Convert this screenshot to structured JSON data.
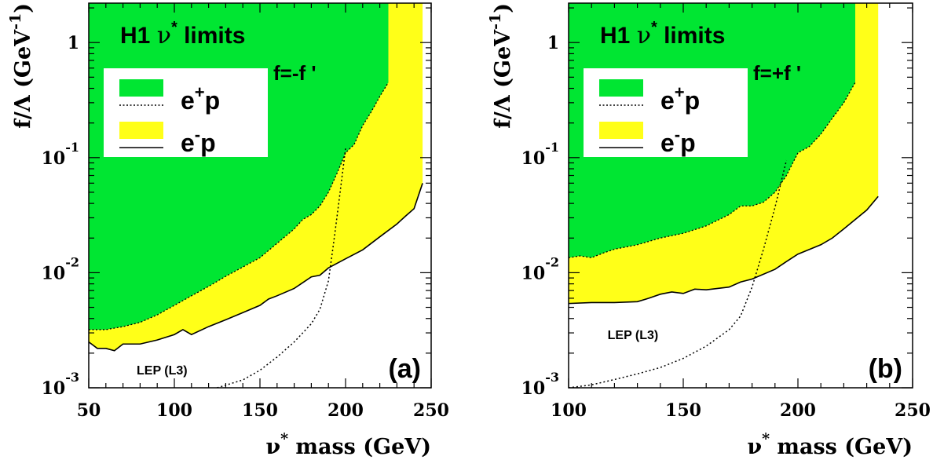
{
  "chart_data": [
    {
      "type": "area",
      "panel_tag": "(a)",
      "title": {
        "main": "H1 ",
        "greek": "ν",
        "sup": "*",
        "rest": " limits"
      },
      "coupling_label": "f=-f '",
      "xlabel": {
        "greek": "ν",
        "sup": "*",
        "rest": " mass (GeV)"
      },
      "ylabel": {
        "main": "f/Λ (GeV",
        "sup": "-1",
        "end": ")"
      },
      "xlim": [
        50,
        250
      ],
      "ylim": [
        0.001,
        2.2
      ],
      "y_scale": "log",
      "x_ticks": [
        50,
        100,
        150,
        200,
        250
      ],
      "x_tick_labels": [
        "50",
        "100",
        "150",
        "200",
        "250"
      ],
      "y_ticks": [
        {
          "value": 1,
          "base": "1",
          "exp": ""
        },
        {
          "value": 0.1,
          "base": "10",
          "exp": "-1"
        },
        {
          "value": 0.01,
          "base": "10",
          "exp": "-2"
        },
        {
          "value": 0.001,
          "base": "10",
          "exp": "-3"
        }
      ],
      "legend": {
        "placement": "upper-left",
        "entries": [
          {
            "swatch": "#00e632",
            "line": "dotted",
            "text": "e",
            "sup": "+",
            "tail": "p"
          },
          {
            "swatch": "#ffff18",
            "line": "solid",
            "text": "e",
            "sup": "-",
            "tail": "p"
          }
        ]
      },
      "series": [
        {
          "name": "e+p",
          "color": "#00e632",
          "line": "dotted",
          "x": [
            50,
            55,
            60,
            65,
            70,
            80,
            90,
            100,
            110,
            120,
            130,
            140,
            150,
            160,
            170,
            175,
            180,
            185,
            190,
            195,
            200,
            205,
            210,
            215,
            220,
            225
          ],
          "y": [
            0.0032,
            0.0032,
            0.0032,
            0.0033,
            0.0034,
            0.0037,
            0.0043,
            0.0052,
            0.0063,
            0.0076,
            0.0093,
            0.0112,
            0.0135,
            0.018,
            0.024,
            0.029,
            0.032,
            0.038,
            0.05,
            0.073,
            0.11,
            0.13,
            0.19,
            0.25,
            0.34,
            0.45
          ]
        },
        {
          "name": "e-p",
          "color": "#ffff18",
          "line": "solid",
          "x": [
            50,
            55,
            60,
            65,
            70,
            80,
            90,
            100,
            105,
            110,
            120,
            130,
            140,
            150,
            155,
            160,
            170,
            180,
            185,
            190,
            200,
            210,
            220,
            230,
            235,
            240,
            245
          ],
          "y": [
            0.0025,
            0.0022,
            0.0022,
            0.0021,
            0.0024,
            0.0024,
            0.0026,
            0.0029,
            0.0032,
            0.0029,
            0.0034,
            0.0039,
            0.0045,
            0.0052,
            0.0059,
            0.0063,
            0.0073,
            0.0092,
            0.0095,
            0.011,
            0.0132,
            0.0158,
            0.0205,
            0.0265,
            0.031,
            0.036,
            0.06
          ]
        }
      ],
      "green_top_x": 225,
      "yellow_top_x": 245,
      "lep_label": "LEP (L3)",
      "lep_curve": {
        "x": [
          125,
          140,
          150,
          160,
          170,
          180,
          185,
          190,
          193,
          196,
          200
        ],
        "y": [
          0.001,
          0.00117,
          0.00142,
          0.00185,
          0.0025,
          0.0036,
          0.0048,
          0.0085,
          0.018,
          0.04,
          0.12
        ]
      }
    },
    {
      "type": "area",
      "panel_tag": "(b)",
      "title": {
        "main": "H1 ",
        "greek": "ν",
        "sup": "*",
        "rest": " limits"
      },
      "coupling_label": "f=+f '",
      "xlabel": {
        "greek": "ν",
        "sup": "*",
        "rest": " mass (GeV)"
      },
      "ylabel": {
        "main": "f/Λ (GeV",
        "sup": "-1",
        "end": ")"
      },
      "xlim": [
        100,
        250
      ],
      "ylim": [
        0.001,
        2.2
      ],
      "y_scale": "log",
      "x_ticks": [
        100,
        150,
        200,
        250
      ],
      "x_tick_labels": [
        "100",
        "150",
        "200",
        "250"
      ],
      "y_ticks": [
        {
          "value": 1,
          "base": "1",
          "exp": ""
        },
        {
          "value": 0.1,
          "base": "10",
          "exp": "-1"
        },
        {
          "value": 0.01,
          "base": "10",
          "exp": "-2"
        },
        {
          "value": 0.001,
          "base": "10",
          "exp": "-3"
        }
      ],
      "legend": {
        "placement": "upper-left",
        "entries": [
          {
            "swatch": "#00e632",
            "line": "dotted",
            "text": "e",
            "sup": "+",
            "tail": "p"
          },
          {
            "swatch": "#ffff18",
            "line": "solid",
            "text": "e",
            "sup": "-",
            "tail": "p"
          }
        ]
      },
      "series": [
        {
          "name": "e+p",
          "color": "#00e632",
          "line": "dotted",
          "x": [
            100,
            105,
            110,
            115,
            120,
            130,
            140,
            150,
            160,
            170,
            175,
            180,
            185,
            190,
            195,
            200,
            205,
            210,
            215,
            220,
            225
          ],
          "y": [
            0.0135,
            0.014,
            0.0135,
            0.0148,
            0.016,
            0.0175,
            0.02,
            0.022,
            0.0255,
            0.032,
            0.038,
            0.038,
            0.041,
            0.05,
            0.07,
            0.11,
            0.125,
            0.16,
            0.22,
            0.3,
            0.45
          ]
        },
        {
          "name": "e-p",
          "color": "#ffff18",
          "line": "solid",
          "x": [
            100,
            110,
            120,
            130,
            135,
            140,
            145,
            150,
            155,
            160,
            170,
            175,
            180,
            190,
            195,
            200,
            210,
            215,
            220,
            225,
            230,
            235
          ],
          "y": [
            0.0054,
            0.0055,
            0.0055,
            0.0056,
            0.006,
            0.0065,
            0.0068,
            0.0066,
            0.0072,
            0.0071,
            0.0075,
            0.0083,
            0.0088,
            0.0107,
            0.0125,
            0.0145,
            0.0175,
            0.02,
            0.024,
            0.029,
            0.035,
            0.046
          ]
        }
      ],
      "green_top_x": 225,
      "yellow_top_x": 235,
      "lep_label": "LEP (L3)",
      "lep_curve": {
        "x": [
          100,
          110,
          120,
          130,
          140,
          150,
          160,
          170,
          175,
          180,
          185,
          190,
          195
        ],
        "y": [
          0.001,
          0.00106,
          0.00118,
          0.00132,
          0.0015,
          0.0018,
          0.0023,
          0.0032,
          0.0042,
          0.0075,
          0.016,
          0.037,
          0.095
        ]
      }
    }
  ]
}
